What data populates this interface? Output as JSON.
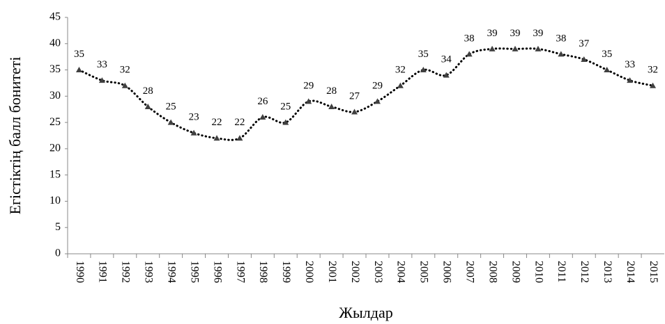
{
  "chart_data": {
    "type": "line",
    "xlabel": "Жылдар",
    "ylabel": "Егістіктің балл бонитеті",
    "categories": [
      "1990",
      "1991",
      "1992",
      "1993",
      "1994",
      "1995",
      "1996",
      "1997",
      "1998",
      "1999",
      "2000",
      "2001",
      "2002",
      "2003",
      "2004",
      "2005",
      "2006",
      "2007",
      "2008",
      "2009",
      "2010",
      "2011",
      "2012",
      "2013",
      "2014",
      "2015"
    ],
    "series": [
      {
        "name": "Егістіктің балл бонитеті",
        "color": "#000000",
        "marker_color": "#404040",
        "values": [
          35,
          33,
          32,
          28,
          25,
          23,
          22,
          22,
          26,
          25,
          29,
          28,
          27,
          29,
          32,
          35,
          34,
          38,
          39,
          39,
          39,
          38,
          37,
          35,
          33,
          32
        ]
      }
    ],
    "ylim": [
      0,
      45
    ],
    "yticks": [
      0,
      5,
      10,
      15,
      20,
      25,
      30,
      35,
      40,
      45
    ],
    "grid": false,
    "line_style": "dotted",
    "smooth": true,
    "marker": "triangle",
    "data_labels": true
  }
}
